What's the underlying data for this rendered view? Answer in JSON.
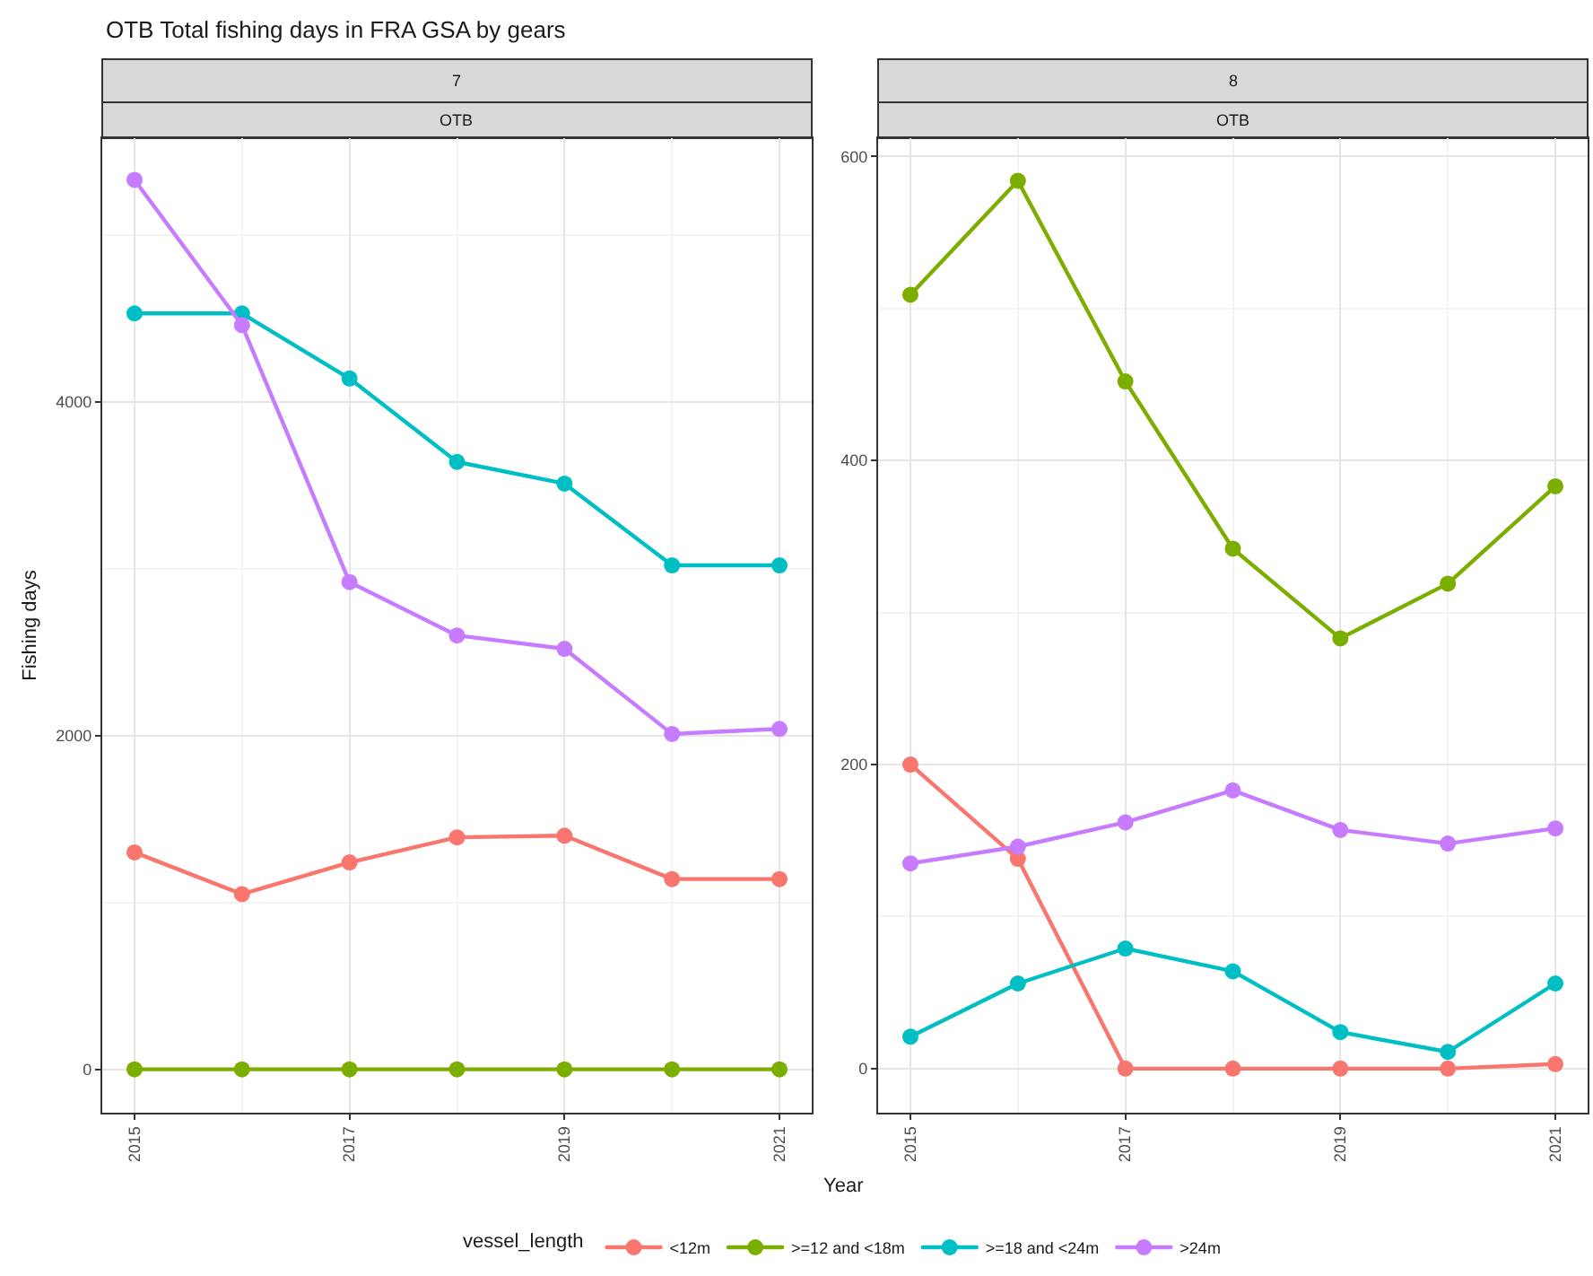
{
  "chart_data": [
    {
      "type": "line",
      "title": "7",
      "subtitle": "OTB",
      "xlabel": "Year",
      "ylabel": "Fishing days",
      "legend_title": "vessel_length",
      "annotations": [
        "OTB Total fishing days in FRA GSA by gears"
      ],
      "x": [
        2015,
        2016,
        2017,
        2018,
        2019,
        2020,
        2021
      ],
      "xlim": [
        2014.7,
        2021.3
      ],
      "xticks": [
        2015,
        2017,
        2019,
        2021
      ],
      "ylim": [
        -260,
        5580
      ],
      "yticks": [
        0,
        2000,
        4000
      ],
      "grid": true,
      "legend": "bottom",
      "marker": "circle",
      "line_style": "solid",
      "series": [
        {
          "name": "<12m",
          "color": "#f8766d",
          "values": [
            1300,
            1050,
            1240,
            1390,
            1400,
            1140,
            1140
          ]
        },
        {
          "name": ">=12 and <18m",
          "color": "#7cae00",
          "values": [
            0,
            0,
            0,
            0,
            0,
            0,
            0
          ]
        },
        {
          "name": ">=18 and <24m",
          "color": "#00bfc4",
          "values": [
            4530,
            4530,
            4140,
            3640,
            3510,
            3020,
            3020
          ]
        },
        {
          "name": ">24m",
          "color": "#c77cff",
          "values": [
            5330,
            4460,
            2920,
            2600,
            2520,
            2010,
            2040
          ]
        }
      ]
    },
    {
      "type": "line",
      "title": "8",
      "subtitle": "OTB",
      "x": [
        2015,
        2016,
        2017,
        2018,
        2019,
        2020,
        2021
      ],
      "xlim": [
        2014.7,
        2021.3
      ],
      "xticks": [
        2015,
        2017,
        2019,
        2021
      ],
      "ylim": [
        -29,
        612
      ],
      "yticks": [
        0,
        200,
        400,
        600
      ],
      "grid": true,
      "legend": "bottom",
      "marker": "circle",
      "line_style": "solid",
      "series": [
        {
          "name": "<12m",
          "color": "#f8766d",
          "values": [
            200,
            138,
            0,
            0,
            0,
            0,
            3
          ]
        },
        {
          "name": ">=12 and <18m",
          "color": "#7cae00",
          "values": [
            509,
            584,
            452,
            342,
            283,
            319,
            383
          ]
        },
        {
          "name": ">=18 and <24m",
          "color": "#00bfc4",
          "values": [
            21,
            56,
            79,
            64,
            24,
            11,
            56
          ]
        },
        {
          "name": ">24m",
          "color": "#c77cff",
          "values": [
            135,
            146,
            162,
            183,
            157,
            148,
            158
          ]
        }
      ]
    }
  ]
}
